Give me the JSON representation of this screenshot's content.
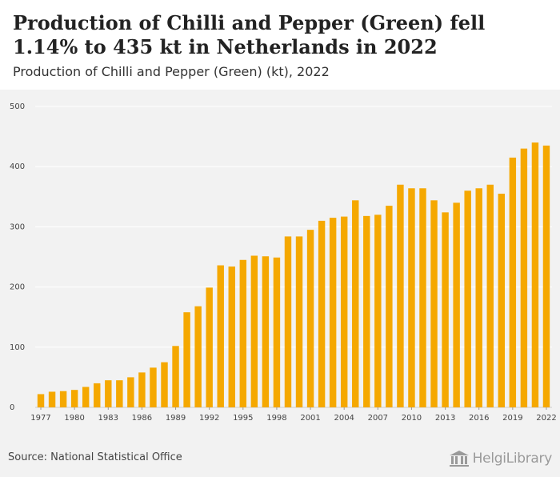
{
  "header": {
    "title": "Production of Chilli and Pepper (Green) fell 1.14% to 435 kt in Netherlands in 2022",
    "subtitle": "Production of Chilli and Pepper (Green) (kt), 2022"
  },
  "footer": {
    "source": "Source: National Statistical Office",
    "logo_text": "HelgiLibrary"
  },
  "colors": {
    "bar": "#f5a800",
    "grid": "#ffffff",
    "background": "#f2f2f2"
  },
  "chart_data": {
    "type": "bar",
    "title": "Production of Chilli and Pepper (Green) (kt), 2022",
    "xlabel": "",
    "ylabel": "",
    "ylim": [
      0,
      500
    ],
    "yticks": [
      0,
      100,
      200,
      300,
      400,
      500
    ],
    "xtick_labels": [
      "1977",
      "1980",
      "1983",
      "1986",
      "1989",
      "1992",
      "1995",
      "1998",
      "2001",
      "2004",
      "2007",
      "2010",
      "2013",
      "2016",
      "2019",
      "2022"
    ],
    "grid": true,
    "categories": [
      "1977",
      "1978",
      "1979",
      "1980",
      "1981",
      "1982",
      "1983",
      "1984",
      "1985",
      "1986",
      "1987",
      "1988",
      "1989",
      "1990",
      "1991",
      "1992",
      "1993",
      "1994",
      "1995",
      "1996",
      "1997",
      "1998",
      "1999",
      "2000",
      "2001",
      "2002",
      "2003",
      "2004",
      "2005",
      "2006",
      "2007",
      "2008",
      "2009",
      "2010",
      "2011",
      "2012",
      "2013",
      "2014",
      "2015",
      "2016",
      "2017",
      "2018",
      "2019",
      "2020",
      "2021",
      "2022"
    ],
    "values": [
      22,
      26,
      27,
      29,
      34,
      40,
      45,
      45,
      50,
      58,
      66,
      75,
      102,
      158,
      168,
      199,
      236,
      234,
      245,
      252,
      251,
      249,
      284,
      284,
      295,
      310,
      315,
      317,
      344,
      318,
      320,
      335,
      370,
      364,
      364,
      344,
      324,
      340,
      360,
      364,
      370,
      355,
      415,
      430,
      440,
      435
    ]
  }
}
